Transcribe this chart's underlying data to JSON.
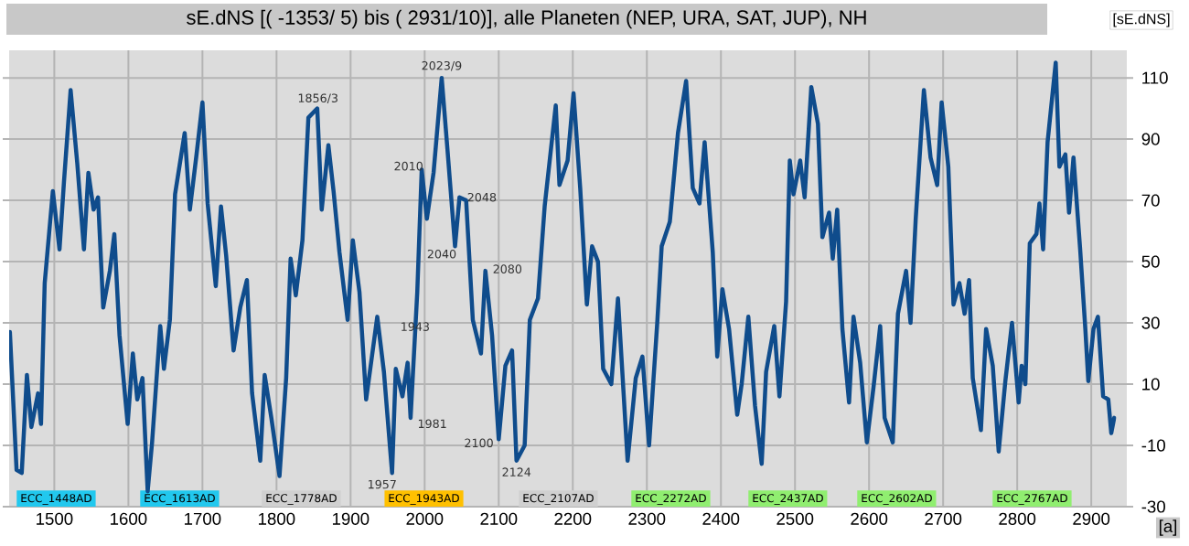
{
  "chart_data": {
    "type": "line",
    "title": "sE.dNS [( -1353/ 5) bis ( 2931/10)], alle Planeten (NEP, URA, SAT, JUP), NH",
    "ylabel": "[sE.dNS]",
    "xlabel": "[a]",
    "xlim": [
      1439,
      2948
    ],
    "ylim": [
      -30,
      119
    ],
    "xticks": [
      1500,
      1600,
      1700,
      1800,
      1900,
      2000,
      2100,
      2200,
      2300,
      2400,
      2500,
      2600,
      2700,
      2800,
      2900
    ],
    "yticks": [
      -30,
      -10,
      10,
      30,
      50,
      70,
      90,
      110
    ],
    "grid": true,
    "marker": "none",
    "line_style": "solid",
    "series": [
      {
        "color": "#0f4c8c",
        "x": [
          1440,
          1449,
          1456,
          1463,
          1469,
          1478,
          1482,
          1487,
          1498,
          1507,
          1513,
          1522,
          1531,
          1540,
          1546,
          1553,
          1559,
          1566,
          1575,
          1581,
          1588,
          1599,
          1606,
          1612,
          1619,
          1626,
          1632,
          1643,
          1648,
          1656,
          1663,
          1676,
          1683,
          1692,
          1700,
          1707,
          1718,
          1725,
          1732,
          1742,
          1751,
          1760,
          1767,
          1778,
          1784,
          1793,
          1804,
          1813,
          1819,
          1826,
          1835,
          1843,
          1855,
          1861,
          1870,
          1877,
          1885,
          1896,
          1903,
          1912,
          1921,
          1936,
          1945,
          1956,
          1961,
          1970,
          1977,
          1981,
          1990,
          1996,
          2003,
          2012,
          2023,
          2030,
          2041,
          2047,
          2056,
          2065,
          2076,
          2082,
          2091,
          2100,
          2109,
          2118,
          2124,
          2135,
          2142,
          2153,
          2162,
          2177,
          2182,
          2193,
          2201,
          2210,
          2219,
          2226,
          2234,
          2241,
          2252,
          2261,
          2274,
          2285,
          2294,
          2303,
          2314,
          2320,
          2331,
          2342,
          2353,
          2362,
          2371,
          2378,
          2389,
          2395,
          2402,
          2411,
          2422,
          2428,
          2437,
          2446,
          2455,
          2461,
          2472,
          2479,
          2488,
          2493,
          2498,
          2507,
          2513,
          2522,
          2531,
          2537,
          2546,
          2551,
          2557,
          2564,
          2573,
          2579,
          2588,
          2597,
          2606,
          2615,
          2621,
          2632,
          2639,
          2650,
          2656,
          2663,
          2674,
          2683,
          2692,
          2698,
          2707,
          2714,
          2722,
          2729,
          2735,
          2740,
          2751,
          2758,
          2767,
          2775,
          2784,
          2793,
          2802,
          2806,
          2811,
          2817,
          2826,
          2830,
          2835,
          2841,
          2852,
          2857,
          2865,
          2870,
          2876,
          2885,
          2892,
          2896,
          2903,
          2909,
          2916,
          2923,
          2927,
          2931
        ],
        "values": [
          27,
          -18,
          -19,
          13,
          -4,
          7,
          -3,
          43,
          73,
          54,
          76,
          106,
          82,
          54,
          79,
          67,
          71,
          35,
          47,
          59,
          26,
          -3,
          20,
          5,
          12,
          -25,
          -9,
          29,
          15,
          31,
          72,
          92,
          67,
          85,
          102,
          69,
          42,
          68,
          52,
          21,
          35,
          44,
          7,
          -15,
          13,
          -1,
          -20,
          12,
          51,
          39,
          57,
          97,
          100,
          67,
          88,
          73,
          53,
          31,
          57,
          40,
          5,
          32,
          14,
          -19,
          15,
          6,
          17,
          -1,
          40,
          80,
          64,
          79,
          110,
          89,
          55,
          71,
          70,
          31,
          20,
          47,
          26,
          -8,
          16,
          21,
          -15,
          -10,
          31,
          38,
          68,
          101,
          75,
          83,
          105,
          74,
          36,
          55,
          50,
          15,
          10,
          38,
          -15,
          12,
          19,
          -10,
          30,
          55,
          63,
          92,
          109,
          74,
          69,
          89,
          53,
          19,
          41,
          28,
          0,
          10,
          32,
          3,
          -16,
          14,
          29,
          6,
          37,
          83,
          72,
          83,
          71,
          107,
          95,
          58,
          66,
          51,
          67,
          28,
          4,
          32,
          17,
          -9,
          9,
          29,
          -1,
          -9,
          33,
          47,
          30,
          64,
          106,
          84,
          75,
          102,
          81,
          36,
          43,
          33,
          44,
          12,
          -5,
          28,
          16,
          -12,
          11,
          30,
          4,
          16,
          10,
          56,
          59,
          69,
          54,
          89,
          115,
          81,
          85,
          66,
          84,
          54,
          28,
          11,
          28,
          32,
          6,
          5,
          -6,
          -1
        ]
      }
    ],
    "annotations": [
      {
        "text": "1856/3",
        "x": 1856,
        "y": 100
      },
      {
        "text": "2023/9",
        "x": 2023,
        "y": 110
      },
      {
        "text": "2010",
        "x": 2010,
        "y": 80
      },
      {
        "text": "2048",
        "x": 2048,
        "y": 71
      },
      {
        "text": "2040",
        "x": 2040,
        "y": 55
      },
      {
        "text": "2080",
        "x": 2080,
        "y": 47
      },
      {
        "text": "1943",
        "x": 1943,
        "y": 27
      },
      {
        "text": "1981",
        "x": 1981,
        "y": -1
      },
      {
        "text": "1957",
        "x": 1957,
        "y": -19
      },
      {
        "text": "2100",
        "x": 2100,
        "y": -8
      },
      {
        "text": "2124",
        "x": 2124,
        "y": -15
      },
      "ECC_1448AD",
      "ECC_1613AD",
      "ECC_1778AD",
      "ECC_1943AD",
      "ECC_2107AD",
      "ECC_2272AD",
      "ECC_2437AD",
      "ECC_2602AD",
      "ECC_2767AD"
    ]
  }
}
